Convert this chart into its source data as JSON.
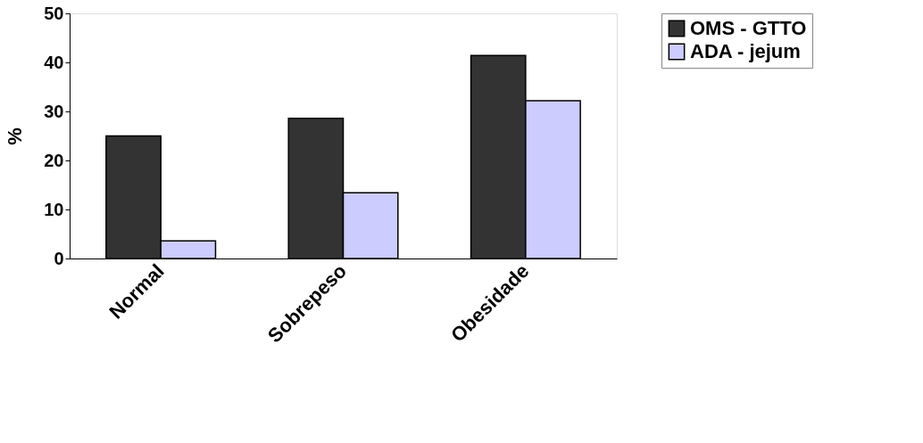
{
  "chart_data": {
    "type": "bar",
    "ylabel": "%",
    "categories": [
      "Normal",
      "Sobrepeso",
      "Obesidade"
    ],
    "series": [
      {
        "name": "OMS - GTTO",
        "color": "#333333",
        "values": [
          25.0,
          28.6,
          41.4
        ]
      },
      {
        "name": "ADA - jejum",
        "color": "#ccccff",
        "values": [
          3.6,
          13.4,
          32.2
        ]
      }
    ],
    "ylim": [
      0,
      50
    ],
    "yticks": [
      0,
      10,
      20,
      30,
      40,
      50
    ],
    "grid": false,
    "legend": "right"
  }
}
